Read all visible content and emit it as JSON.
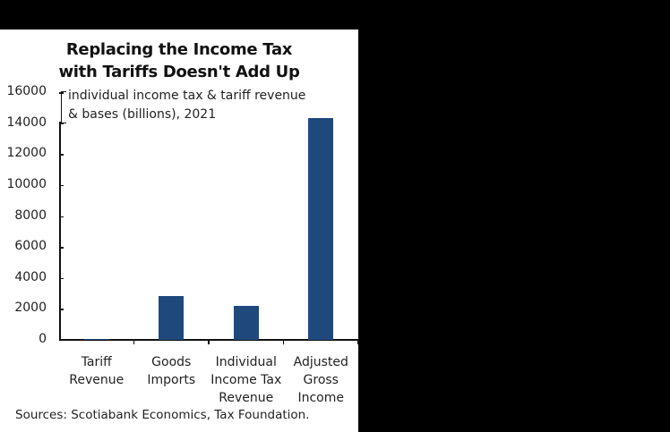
{
  "chart_data": {
    "type": "bar",
    "title": "Replacing the Income Tax with Tariffs Doesn't Add Up",
    "title_lines": [
      "Replacing the Income Tax",
      "with Tariffs Doesn't Add Up"
    ],
    "subtitle_lines": [
      "individual income tax & tariff revenue",
      "& bases (billions), 2021"
    ],
    "categories": [
      "Tariff Revenue",
      "Goods Imports",
      "Individual Income Tax Revenue",
      "Adjusted Gross Income"
    ],
    "category_lines": [
      [
        "Tariff",
        "Revenue"
      ],
      [
        "Goods",
        "Imports"
      ],
      [
        "Individual",
        "Income Tax",
        "Revenue"
      ],
      [
        "Adjusted",
        "Gross",
        "Income"
      ]
    ],
    "values": [
      80,
      2830,
      2200,
      14300
    ],
    "xlabel": "",
    "ylabel": "billions",
    "ylim": [
      0,
      16000
    ],
    "yticks": [
      0,
      2000,
      4000,
      6000,
      8000,
      10000,
      12000,
      14000,
      16000
    ],
    "grid": false,
    "bar_color": "#1f497d",
    "source": "Sources: Scotiabank Economics, Tax Foundation."
  }
}
